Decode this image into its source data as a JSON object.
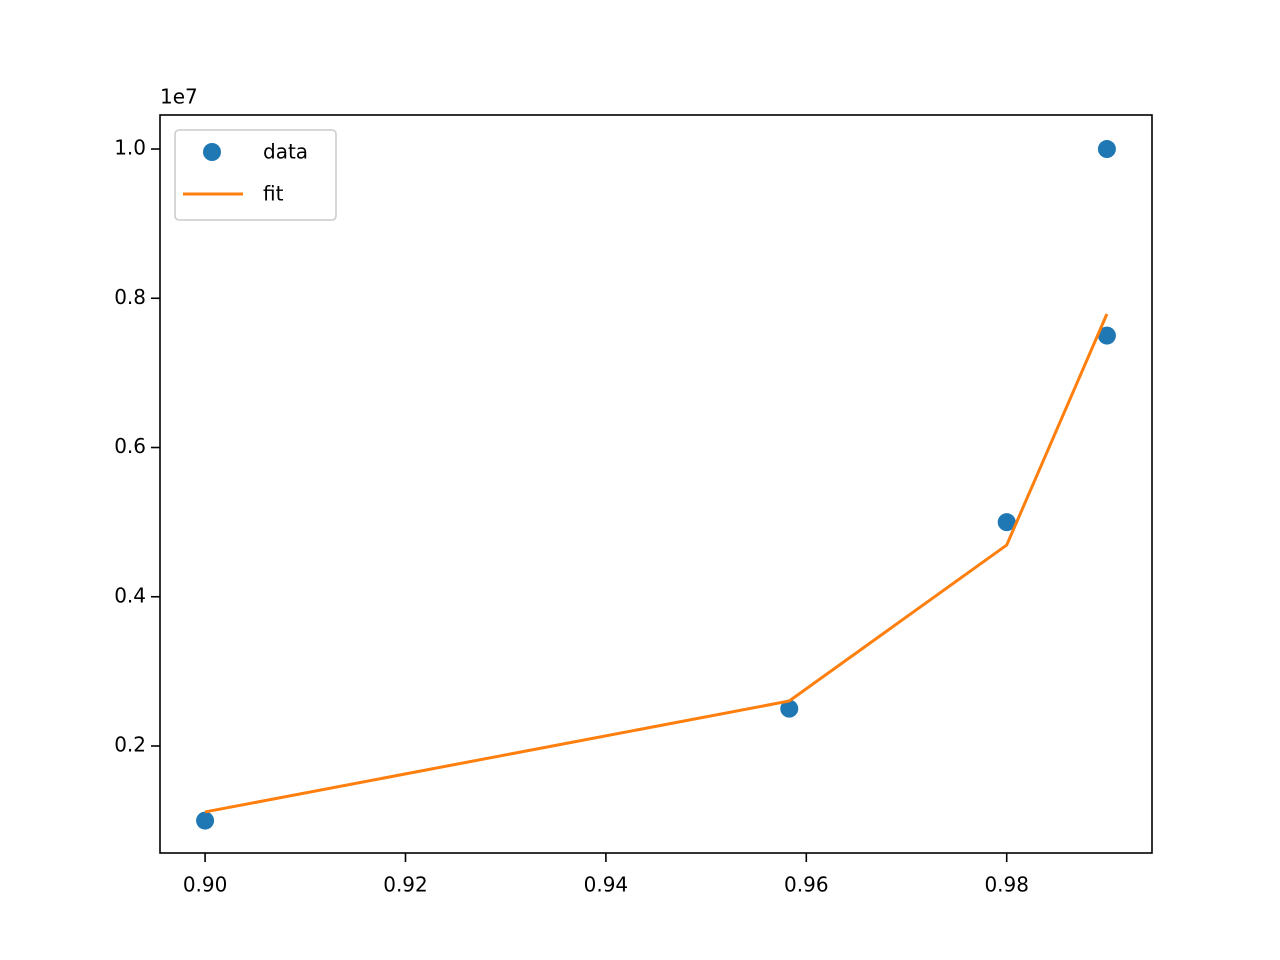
{
  "chart_data": {
    "type": "line",
    "y_offset_label": "1e7",
    "xlim": [
      0.8955,
      0.9945
    ],
    "ylim": [
      566000,
      10456000
    ],
    "xticks": [
      {
        "value": 0.9,
        "label": "0.90"
      },
      {
        "value": 0.92,
        "label": "0.92"
      },
      {
        "value": 0.94,
        "label": "0.94"
      },
      {
        "value": 0.96,
        "label": "0.96"
      },
      {
        "value": 0.98,
        "label": "0.98"
      }
    ],
    "yticks": [
      {
        "value": 2000000,
        "label": "0.2"
      },
      {
        "value": 4000000,
        "label": "0.4"
      },
      {
        "value": 6000000,
        "label": "0.6"
      },
      {
        "value": 8000000,
        "label": "0.8"
      },
      {
        "value": 10000000,
        "label": "1.0"
      }
    ],
    "legend": "upper left",
    "series": [
      {
        "name": "data",
        "color": "#1f77b4",
        "mode": "markers",
        "x": [
          0.9,
          0.9583,
          0.98,
          0.99,
          0.99
        ],
        "values": [
          1000000,
          2500000,
          5000000,
          7500000,
          10000000
        ]
      },
      {
        "name": "fit",
        "color": "#ff7f0e",
        "mode": "lines",
        "x": [
          0.9,
          0.9583,
          0.98,
          0.99
        ],
        "values": [
          1116000,
          2603000,
          4693000,
          7789000
        ]
      }
    ]
  }
}
